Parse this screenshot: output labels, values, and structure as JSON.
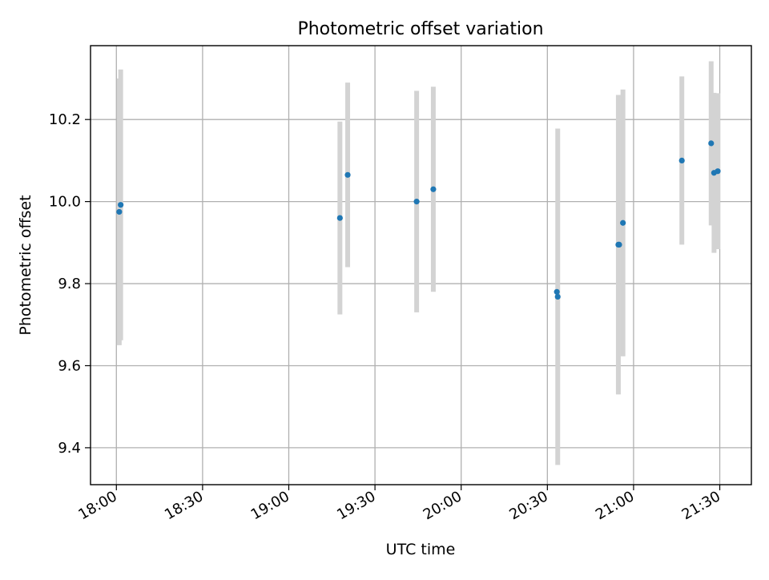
{
  "chart_data": {
    "type": "scatter",
    "title": "Photometric offset variation",
    "xlabel": "UTC time",
    "ylabel": "Photometric offset",
    "x_unit": "minutes since 18:00 UTC",
    "xlim": [
      -9,
      221
    ],
    "ylim": [
      9.31,
      10.38
    ],
    "grid": true,
    "x_ticks": [
      {
        "value": 0,
        "label": "18:00"
      },
      {
        "value": 30,
        "label": "18:30"
      },
      {
        "value": 60,
        "label": "19:00"
      },
      {
        "value": 90,
        "label": "19:30"
      },
      {
        "value": 120,
        "label": "20:00"
      },
      {
        "value": 150,
        "label": "20:30"
      },
      {
        "value": 180,
        "label": "21:00"
      },
      {
        "value": 210,
        "label": "21:30"
      }
    ],
    "y_ticks": [
      {
        "value": 9.4,
        "label": "9.4"
      },
      {
        "value": 9.6,
        "label": "9.6"
      },
      {
        "value": 9.8,
        "label": "9.8"
      },
      {
        "value": 10.0,
        "label": "10.0"
      },
      {
        "value": 10.2,
        "label": "10.2"
      }
    ],
    "colors": {
      "points": "#1f77b4",
      "errorbars": "#d3d3d3",
      "grid": "#b0b0b0",
      "axes": "#000000"
    },
    "points": [
      {
        "time": "18:01",
        "x": 1.0,
        "y": 9.975,
        "err": 0.325
      },
      {
        "time": "18:02",
        "x": 1.5,
        "y": 9.992,
        "err": 0.33
      },
      {
        "time": "19:18",
        "x": 77.8,
        "y": 9.96,
        "err": 0.235
      },
      {
        "time": "19:21",
        "x": 80.5,
        "y": 10.065,
        "err": 0.225
      },
      {
        "time": "19:45",
        "x": 104.5,
        "y": 10.0,
        "err": 0.27
      },
      {
        "time": "19:50",
        "x": 110.3,
        "y": 10.03,
        "err": 0.25
      },
      {
        "time": "20:33",
        "x": 153.3,
        "y": 9.78,
        "err": 0.0
      },
      {
        "time": "20:34",
        "x": 153.6,
        "y": 9.768,
        "err": 0.41
      },
      {
        "time": "20:55",
        "x": 174.7,
        "y": 9.895,
        "err": 0.365
      },
      {
        "time": "20:55",
        "x": 175.0,
        "y": 9.895,
        "err": 0.0
      },
      {
        "time": "20:56",
        "x": 176.3,
        "y": 9.948,
        "err": 0.325
      },
      {
        "time": "21:17",
        "x": 196.8,
        "y": 10.1,
        "err": 0.205
      },
      {
        "time": "21:27",
        "x": 207.0,
        "y": 10.142,
        "err": 0.2
      },
      {
        "time": "21:28",
        "x": 208.0,
        "y": 10.07,
        "err": 0.195
      },
      {
        "time": "21:29",
        "x": 209.3,
        "y": 10.074,
        "err": 0.19
      }
    ]
  }
}
